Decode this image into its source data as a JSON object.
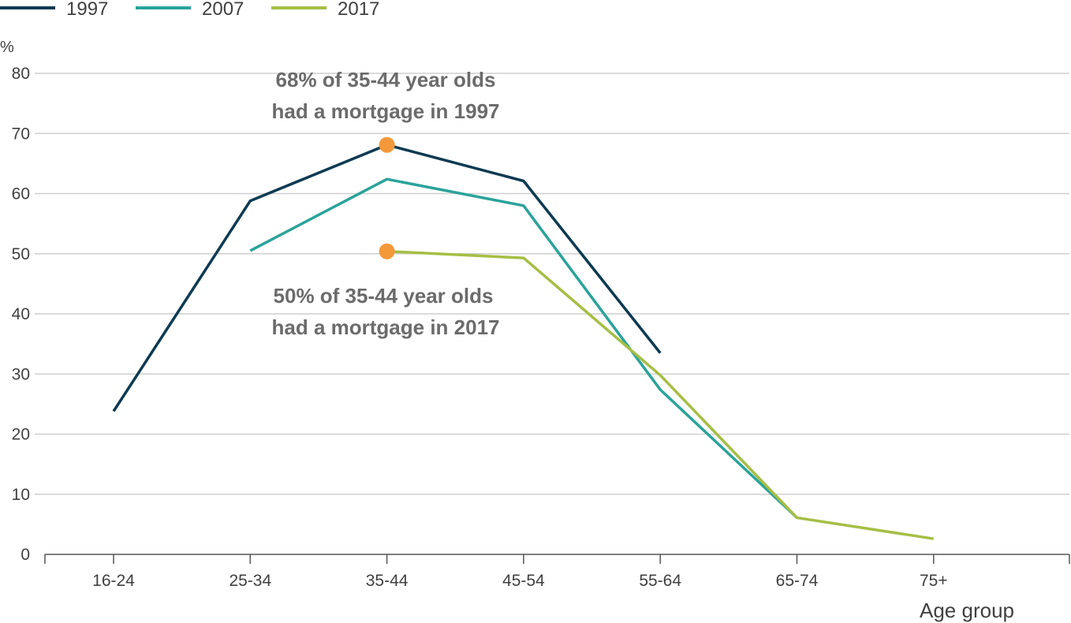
{
  "chart_data": {
    "type": "line",
    "y_unit": "%",
    "xlabel": "Age group",
    "ylabel": "",
    "ylim": [
      0,
      80
    ],
    "y_ticks": [
      0,
      10,
      20,
      30,
      40,
      50,
      60,
      70,
      80
    ],
    "categories": [
      "16-24",
      "25-34",
      "35-44",
      "45-54",
      "55-64",
      "65-74",
      "75+"
    ],
    "grid": "horizontal",
    "legend_position": "top-left",
    "series": [
      {
        "name": "1997",
        "color": "#0d3a52",
        "values": [
          23.8,
          58.8,
          68.1,
          62.1,
          33.5,
          null,
          null
        ]
      },
      {
        "name": "2007",
        "color": "#2ba39a",
        "values": [
          null,
          50.5,
          62.4,
          58.0,
          27.4,
          6.1,
          null
        ]
      },
      {
        "name": "2017",
        "color": "#a6be44",
        "values": [
          null,
          null,
          50.4,
          49.3,
          29.8,
          6.1,
          2.6
        ]
      }
    ],
    "highlights": [
      {
        "series": "1997",
        "category": "35-44",
        "value": 68.1,
        "color": "#f4993a"
      },
      {
        "series": "2017",
        "category": "35-44",
        "value": 50.4,
        "color": "#f4993a"
      }
    ],
    "annotations": [
      {
        "lines": [
          "68% of 35-44 year olds",
          "had a mortgage in 1997"
        ]
      },
      {
        "lines": [
          "50% of 35-44 year olds",
          "had a mortgage in 2017"
        ]
      }
    ]
  }
}
